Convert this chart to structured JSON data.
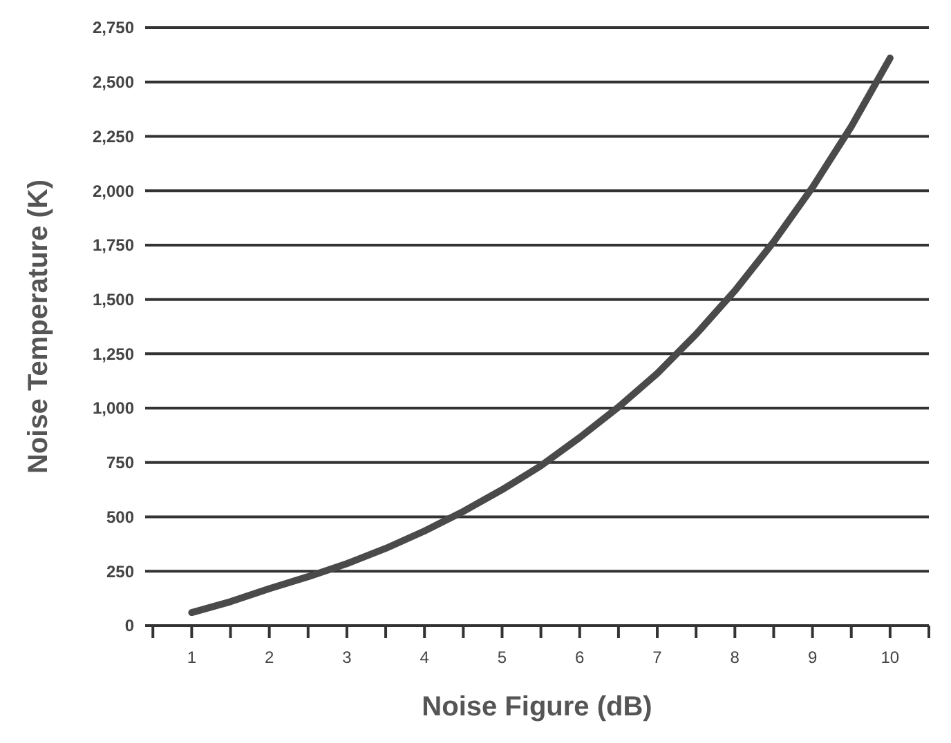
{
  "chart_data": {
    "type": "line",
    "xlabel": "Noise Figure (dB)",
    "ylabel": "Noise Temperature (K)",
    "x": [
      1,
      1.5,
      2,
      2.5,
      3,
      3.5,
      4,
      4.5,
      5,
      5.5,
      6,
      6.5,
      7,
      7.5,
      8,
      8.5,
      9,
      9.5,
      10
    ],
    "series": [
      {
        "color": "#4a4a4a",
        "values": [
          60,
          110,
          170,
          225,
          285,
          355,
          435,
          525,
          625,
          735,
          865,
          1005,
          1160,
          1340,
          1540,
          1765,
          2015,
          2295,
          2610
        ]
      }
    ],
    "xlim": [
      0.4,
      10.5
    ],
    "xticks": [
      {
        "value": 0.5,
        "label": null
      },
      1,
      {
        "value": 1.5,
        "label": null
      },
      2,
      {
        "value": 2.5,
        "label": null
      },
      3,
      {
        "value": 3.5,
        "label": null
      },
      4,
      {
        "value": 4.5,
        "label": null
      },
      5,
      {
        "value": 5.5,
        "label": null
      },
      6,
      {
        "value": 6.5,
        "label": null
      },
      7,
      {
        "value": 7.5,
        "label": null
      },
      8,
      {
        "value": 8.5,
        "label": null
      },
      9,
      {
        "value": 9.5,
        "label": null
      },
      10,
      {
        "value": 10.5,
        "label": null
      }
    ],
    "ylim": [
      0,
      2750
    ],
    "yticks": [
      {
        "value": 0,
        "label": "0"
      },
      {
        "value": 250,
        "label": "250"
      },
      {
        "value": 500,
        "label": "500"
      },
      {
        "value": 750,
        "label": "750"
      },
      {
        "value": 1000,
        "label": "1,000"
      },
      {
        "value": 1250,
        "label": "1,250"
      },
      {
        "value": 1500,
        "label": "1,500"
      },
      {
        "value": 1750,
        "label": "1,750"
      },
      {
        "value": 2000,
        "label": "2,000"
      },
      {
        "value": 2250,
        "label": "2,250"
      },
      {
        "value": 2500,
        "label": "2,500"
      },
      {
        "value": 2750,
        "label": "2,750"
      }
    ],
    "grid": "y",
    "marker": "none",
    "line_style": "solid"
  }
}
